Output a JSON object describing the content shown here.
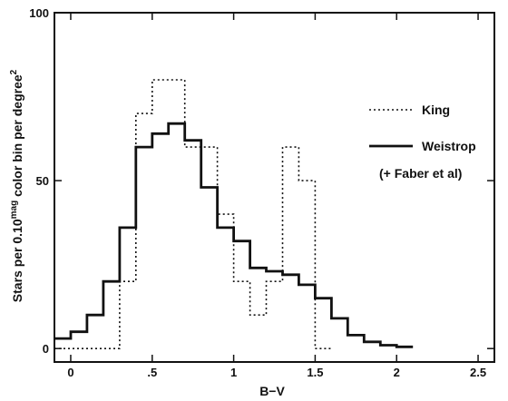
{
  "chart_data": {
    "type": "line",
    "title": "",
    "xlabel": "B−V",
    "ylabel": "Stars per 0.10 mag color bin per degree 2",
    "ylabel_parts": {
      "pre": "Stars per 0.10",
      "sup1": "mag",
      "mid": " color bin per degree",
      "sup2": "2"
    },
    "xlim": [
      -0.1,
      2.6
    ],
    "ylim": [
      -4,
      100
    ],
    "xticks": [
      0,
      0.5,
      1,
      1.5,
      2,
      2.5
    ],
    "xtick_labels": [
      "0",
      ".5",
      "1",
      "1.5",
      "2",
      "2.5"
    ],
    "yticks": [
      0,
      50,
      100
    ],
    "ytick_labels": [
      "0",
      "50",
      "100"
    ],
    "bin_width": 0.1,
    "series": [
      {
        "name": "King",
        "style": "dotted",
        "bins_start": [
          -0.1,
          0.0,
          0.1,
          0.2,
          0.3,
          0.4,
          0.5,
          0.6,
          0.7,
          0.8,
          0.9,
          1.0,
          1.1,
          1.2,
          1.3,
          1.4,
          1.5
        ],
        "values": [
          0,
          0,
          0,
          0,
          20,
          70,
          80,
          80,
          60,
          60,
          40,
          20,
          10,
          20,
          60,
          50,
          0
        ]
      },
      {
        "name": "Weistrop",
        "style": "solid",
        "bins_start": [
          -0.1,
          0.0,
          0.1,
          0.2,
          0.3,
          0.4,
          0.5,
          0.6,
          0.7,
          0.8,
          0.9,
          1.0,
          1.1,
          1.2,
          1.3,
          1.4,
          1.5,
          1.6,
          1.7,
          1.8,
          1.9,
          2.0
        ],
        "values": [
          3,
          5,
          10,
          20,
          36,
          60,
          64,
          67,
          62,
          48,
          36,
          32,
          24,
          23,
          22,
          19,
          15,
          9,
          4,
          2,
          1,
          0.5
        ]
      }
    ],
    "legend": [
      {
        "label": "King",
        "style": "dotted"
      },
      {
        "label": "Weistrop",
        "style": "solid"
      },
      {
        "label": "(+ Faber et al)",
        "style": "none"
      }
    ],
    "legend_position": "right",
    "grid": false
  }
}
